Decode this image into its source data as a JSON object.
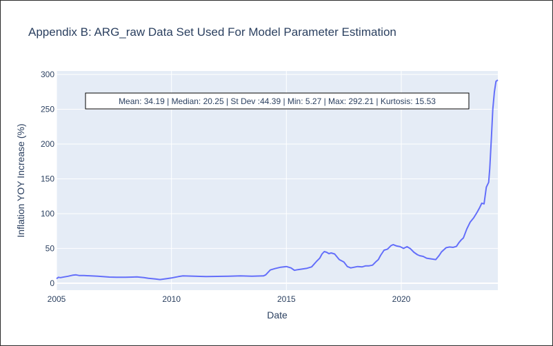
{
  "chart_data": {
    "type": "line",
    "title": "Appendix B: ARG_raw Data Set Used For Model Parameter Estimation",
    "xlabel": "Date",
    "ylabel": "Inflation YOY Increase (%)",
    "xlim": [
      2005.0,
      2024.2
    ],
    "ylim": [
      -10,
      305
    ],
    "xticks": [
      2005,
      2010,
      2015,
      2020
    ],
    "yticks": [
      0,
      50,
      100,
      150,
      200,
      250,
      300
    ],
    "grid": true,
    "line_color": "#636efa",
    "plot_bg": "#e5ecf6",
    "annotation": "Mean: 34.19 | Median: 20.25 | St Dev :44.39 | Min: 5.27 | Max: 292.21 | Kurtosis: 15.53",
    "series": [
      {
        "x": [
          2005.0,
          2005.08,
          2005.17,
          2005.33,
          2005.5,
          2005.7,
          2005.85,
          2006.0,
          2006.2,
          2006.5,
          2006.8,
          2007.0,
          2007.3,
          2007.6,
          2008.0,
          2008.3,
          2008.5,
          2008.8,
          2009.0,
          2009.3,
          2009.5,
          2009.8,
          2010.0,
          2010.3,
          2010.5,
          2011.0,
          2011.5,
          2012.0,
          2012.5,
          2013.0,
          2013.5,
          2014.0,
          2014.1,
          2014.3,
          2014.5,
          2014.75,
          2015.0,
          2015.2,
          2015.35,
          2015.5,
          2015.7,
          2015.9,
          2016.1,
          2016.3,
          2016.45,
          2016.55,
          2016.65,
          2016.75,
          2016.85,
          2016.95,
          2017.1,
          2017.3,
          2017.5,
          2017.65,
          2017.8,
          2017.95,
          2018.1,
          2018.3,
          2018.45,
          2018.6,
          2018.75,
          2018.9,
          2019.0,
          2019.1,
          2019.25,
          2019.4,
          2019.55,
          2019.65,
          2019.8,
          2019.95,
          2020.1,
          2020.25,
          2020.4,
          2020.55,
          2020.7,
          2020.8,
          2020.95,
          2021.1,
          2021.3,
          2021.5,
          2021.65,
          2021.75,
          2021.85,
          2021.95,
          2022.1,
          2022.25,
          2022.4,
          2022.5,
          2022.6,
          2022.7,
          2022.85,
          2023.0,
          2023.15,
          2023.3,
          2023.4,
          2023.5,
          2023.6,
          2023.7,
          2023.8,
          2023.85,
          2023.92,
          2023.98,
          2024.05,
          2024.12,
          2024.2
        ],
        "y": [
          6.5,
          8.5,
          8.0,
          9.0,
          10.0,
          11.5,
          12.0,
          11.0,
          11.0,
          10.5,
          10.0,
          9.5,
          8.8,
          8.5,
          8.5,
          8.8,
          9.0,
          8.0,
          7.0,
          6.0,
          5.3,
          6.5,
          7.5,
          9.5,
          10.5,
          10.0,
          9.5,
          9.8,
          10.0,
          10.5,
          10.0,
          10.5,
          12.0,
          19.0,
          21.0,
          23.0,
          24.0,
          22.0,
          18.5,
          19.5,
          20.5,
          21.5,
          23.5,
          31.0,
          36.0,
          42.0,
          45.5,
          44.5,
          42.5,
          43.5,
          42.0,
          34.0,
          30.5,
          24.0,
          22.0,
          23.0,
          24.0,
          23.5,
          25.0,
          25.0,
          26.0,
          31.0,
          34.0,
          40.0,
          47.5,
          49.0,
          54.0,
          55.5,
          53.5,
          52.5,
          50.0,
          52.5,
          49.5,
          44.5,
          41.0,
          39.5,
          38.5,
          36.0,
          35.0,
          34.0,
          40.0,
          45.0,
          48.0,
          51.0,
          52.0,
          51.5,
          53.0,
          58.0,
          62.0,
          65.0,
          78.0,
          88.0,
          94.0,
          102.0,
          108.0,
          115.0,
          114.0,
          138.0,
          145.0,
          165.0,
          210.0,
          250.0,
          275.0,
          290.0,
          292.0
        ]
      }
    ]
  }
}
